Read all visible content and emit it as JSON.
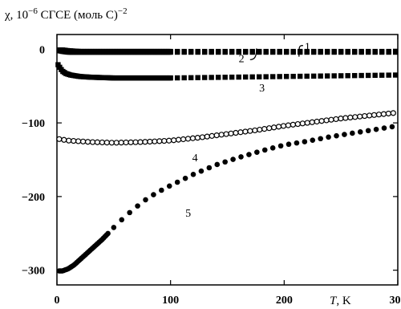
{
  "chart_data": {
    "type": "scatter",
    "title": "",
    "ylabel": {
      "symbol": "χ",
      "text": ", 10",
      "exponent": "−6",
      "units": " СГСЕ (моль С)",
      "units_exponent": "−2"
    },
    "xlabel": {
      "symbol": "T",
      "units": ", K"
    },
    "xlim": [
      0,
      300
    ],
    "ylim": [
      -320,
      20
    ],
    "x_ticks": [
      0,
      100,
      200,
      300
    ],
    "y_ticks": [
      0,
      -100,
      -200,
      -300
    ],
    "grid": false,
    "series": [
      {
        "name": "1",
        "marker": "square",
        "color": "#000000",
        "points": [
          [
            2,
            -1
          ],
          [
            5,
            -1
          ],
          [
            10,
            -2
          ],
          [
            20,
            -3
          ],
          [
            30,
            -3
          ],
          [
            40,
            -3
          ],
          [
            60,
            -3
          ],
          [
            80,
            -3
          ],
          [
            100,
            -3
          ],
          [
            150,
            -3
          ],
          [
            200,
            -3
          ],
          [
            250,
            -3
          ],
          [
            300,
            -3
          ]
        ]
      },
      {
        "name": "2",
        "marker": "square",
        "color": "#000000",
        "points": [
          [
            2,
            -2
          ],
          [
            5,
            -3
          ],
          [
            10,
            -4
          ],
          [
            20,
            -4
          ],
          [
            40,
            -4
          ],
          [
            60,
            -4
          ],
          [
            80,
            -4
          ],
          [
            100,
            -4
          ],
          [
            150,
            -4
          ],
          [
            200,
            -4
          ],
          [
            250,
            -4
          ],
          [
            300,
            -4
          ]
        ]
      },
      {
        "name": "3",
        "marker": "square",
        "color": "#000000",
        "points": [
          [
            1,
            -21
          ],
          [
            3,
            -26
          ],
          [
            5,
            -30
          ],
          [
            8,
            -33
          ],
          [
            12,
            -35
          ],
          [
            20,
            -37
          ],
          [
            30,
            -38
          ],
          [
            50,
            -39
          ],
          [
            70,
            -39
          ],
          [
            100,
            -39
          ],
          [
            150,
            -38
          ],
          [
            200,
            -37
          ],
          [
            250,
            -36
          ],
          [
            300,
            -35
          ]
        ]
      },
      {
        "name": "4",
        "marker": "open-circle",
        "color": "#000000",
        "points": [
          [
            2,
            -122
          ],
          [
            10,
            -124
          ],
          [
            30,
            -126
          ],
          [
            50,
            -127
          ],
          [
            75,
            -126
          ],
          [
            100,
            -124
          ],
          [
            125,
            -120
          ],
          [
            150,
            -115
          ],
          [
            175,
            -110
          ],
          [
            200,
            -104
          ],
          [
            225,
            -99
          ],
          [
            250,
            -94
          ],
          [
            275,
            -90
          ],
          [
            300,
            -86
          ]
        ]
      },
      {
        "name": "5",
        "marker": "filled-circle",
        "color": "#000000",
        "points": [
          [
            2,
            -301
          ],
          [
            5,
            -301
          ],
          [
            10,
            -298
          ],
          [
            15,
            -293
          ],
          [
            20,
            -286
          ],
          [
            25,
            -279
          ],
          [
            30,
            -272
          ],
          [
            40,
            -258
          ],
          [
            50,
            -242
          ],
          [
            60,
            -227
          ],
          [
            70,
            -214
          ],
          [
            80,
            -202
          ],
          [
            90,
            -193
          ],
          [
            100,
            -185
          ],
          [
            120,
            -170
          ],
          [
            140,
            -157
          ],
          [
            160,
            -147
          ],
          [
            180,
            -138
          ],
          [
            200,
            -130
          ],
          [
            220,
            -125
          ],
          [
            240,
            -119
          ],
          [
            260,
            -114
          ],
          [
            280,
            -109
          ],
          [
            300,
            -104
          ]
        ]
      }
    ],
    "annotations": [
      {
        "label": "1",
        "x": 218,
        "y": 4
      },
      {
        "label": "2",
        "x": 160,
        "y": -12
      },
      {
        "label": "3",
        "x": 178,
        "y": -52
      },
      {
        "label": "4",
        "x": 119,
        "y": -147
      },
      {
        "label": "5",
        "x": 113,
        "y": -222
      }
    ]
  }
}
